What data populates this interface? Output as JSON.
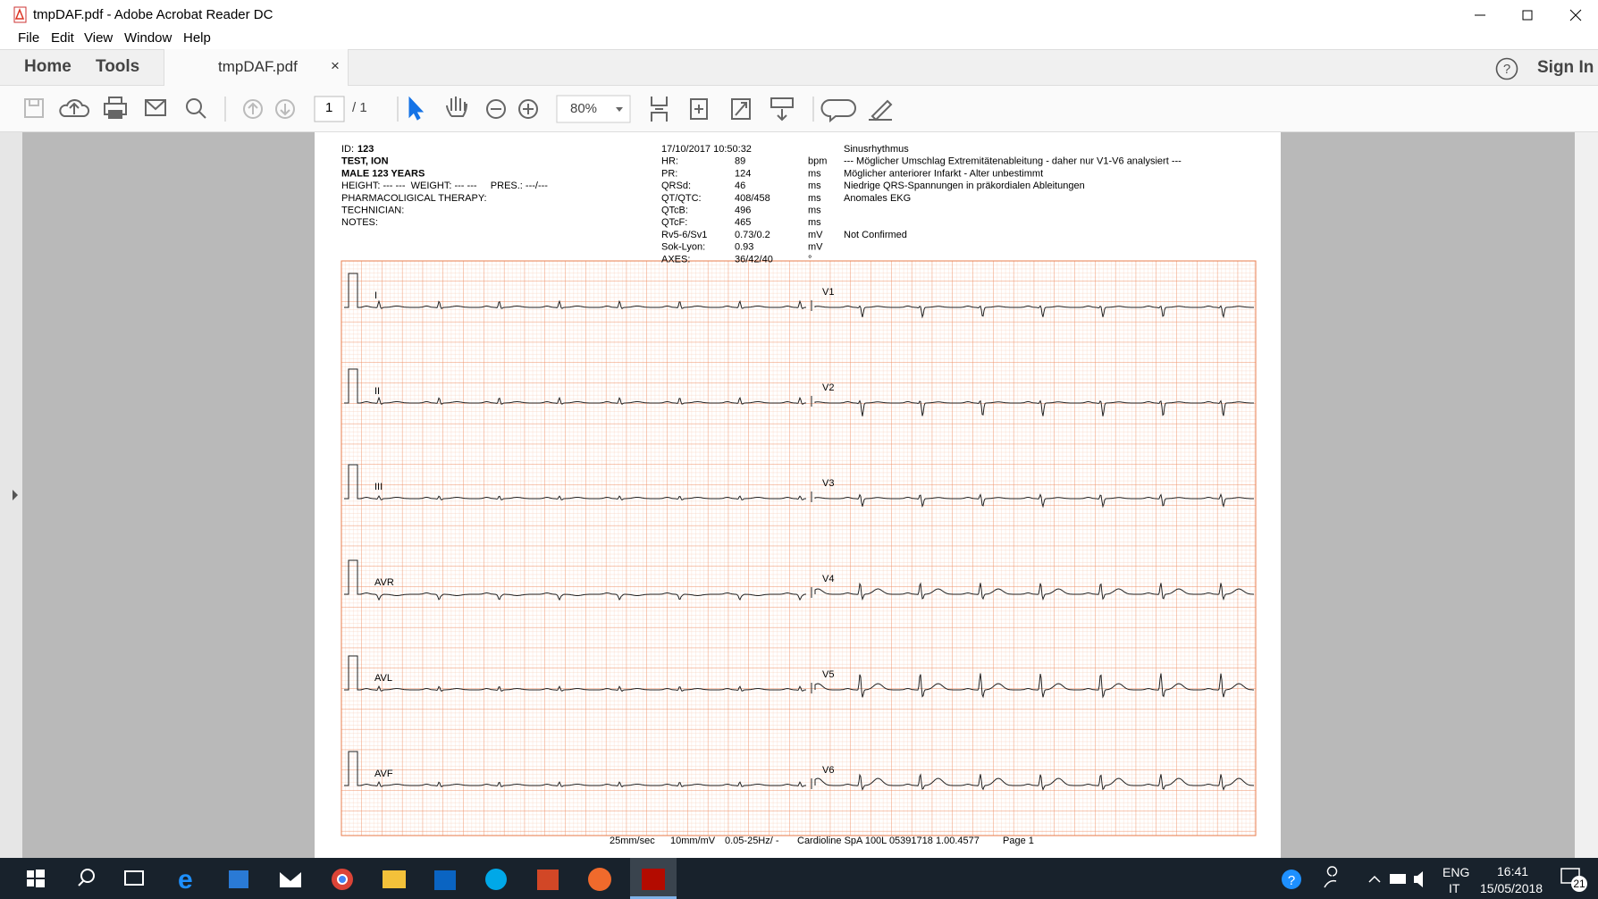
{
  "window": {
    "title": "tmpDAF.pdf - Adobe Acrobat Reader DC"
  },
  "menu": [
    "File",
    "Edit",
    "View",
    "Window",
    "Help"
  ],
  "tabs": {
    "home": "Home",
    "tools": "Tools",
    "document": "tmpDAF.pdf",
    "close": "×"
  },
  "account": {
    "sign_in": "Sign In"
  },
  "toolbar": {
    "page": "1",
    "page_total": "/ 1",
    "zoom": "80%"
  },
  "report": {
    "patient": {
      "id_label": "ID:",
      "id": "123",
      "name": "TEST, ION",
      "sex_age": "MALE 123 YEARS",
      "body": "HEIGHT: --- ---  WEIGHT: --- ---     PRES.: ---/---",
      "therapy": "PHARMACOLIGICAL THERAPY:",
      "technician": "TECHNICIAN:",
      "notes": "NOTES:"
    },
    "datetime": "17/10/2017 10:50:32",
    "measurements": [
      [
        "HR:",
        "89",
        "bpm"
      ],
      [
        "PR:",
        "124",
        "ms"
      ],
      [
        "QRSd:",
        "46",
        "ms"
      ],
      [
        "QT/QTC:",
        "408/458",
        "ms"
      ],
      [
        "QTcB:",
        "496",
        "ms"
      ],
      [
        "QTcF:",
        "465",
        "ms"
      ],
      [
        "Rv5-6/Sv1",
        "0.73/0.2",
        "mV"
      ],
      [
        "Sok-Lyon:",
        "0.93",
        "mV"
      ],
      [
        "AXES:",
        "36/42/40",
        "°"
      ]
    ],
    "interpretation": [
      "Sinusrhythmus",
      "--- Möglicher Umschlag Extremitätenableitung - daher nur  V1-V6 analysiert ---",
      "Möglicher anteriorer Infarkt - Alter unbestimmt",
      "Niedrige QRS-Spannungen in präkordialen Ableitungen",
      "Anomales EKG"
    ],
    "status": "Not Confirmed",
    "leads_left": [
      "I",
      "II",
      "III",
      "AVR",
      "AVL",
      "AVF"
    ],
    "leads_right": [
      "V1",
      "V2",
      "V3",
      "V4",
      "V5",
      "V6"
    ],
    "footer": [
      "25mm/sec",
      "10mm/mV",
      "0.05-25Hz/ -",
      "Cardioline SpA 100L 05391718 1.00.4577",
      "Page 1"
    ]
  },
  "taskbar": {
    "language": "ENG",
    "keyboard": "IT",
    "time": "16:41",
    "date": "15/05/2018",
    "notifications": "21"
  }
}
